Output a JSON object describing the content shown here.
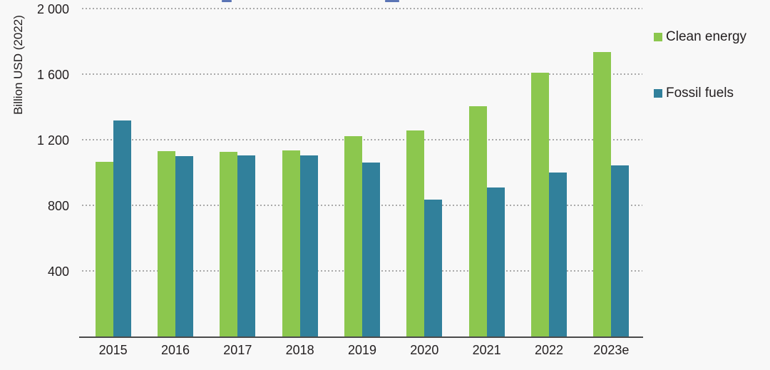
{
  "y_axis": {
    "title": "Billion USD (2022)"
  },
  "colors": {
    "background": "#F8F8F8",
    "clean_energy": "#8CC74E",
    "fossil_fuels": "#31809B",
    "gridline": "#A9A9A9",
    "axis_line": "#4A4A4A",
    "text": "#231F20",
    "cropped_title_blue": "#3F5EA9"
  },
  "chart_data": {
    "type": "bar",
    "categories": [
      "2015",
      "2016",
      "2017",
      "2018",
      "2019",
      "2020",
      "2021",
      "2022",
      "2023e"
    ],
    "series": [
      {
        "name": "Clean energy",
        "color": "#8CC74E",
        "values": [
          1070,
          1135,
          1130,
          1140,
          1225,
          1260,
          1410,
          1615,
          1740
        ]
      },
      {
        "name": "Fossil fuels",
        "color": "#31809B",
        "values": [
          1320,
          1105,
          1110,
          1110,
          1065,
          840,
          915,
          1005,
          1050
        ]
      }
    ],
    "xlabel": "",
    "ylabel": "Billion USD (2022)",
    "ylim": [
      0,
      2000
    ],
    "yticks": [
      400,
      800,
      1200,
      1600,
      2000
    ],
    "ytick_labels": [
      "400",
      "800",
      "1 200",
      "1 600",
      "2 000"
    ],
    "grid": "horizontal-dotted",
    "legend_position": "right"
  }
}
